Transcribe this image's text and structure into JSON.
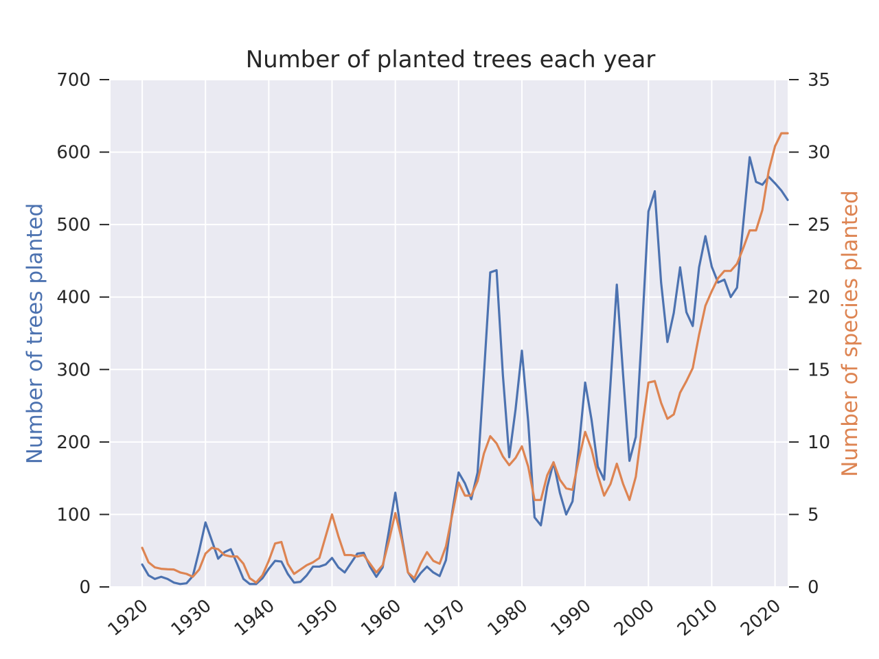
{
  "chart_data": {
    "type": "line",
    "title": "Number of planted trees each year",
    "xlabel": "",
    "xlim": [
      1915,
      2022
    ],
    "x_ticks": [
      "1920",
      "1930",
      "1940",
      "1950",
      "1960",
      "1970",
      "1980",
      "1990",
      "2000",
      "2010",
      "2020"
    ],
    "grid": true,
    "background": "#eaeaf2",
    "y_left": {
      "label": "Number of trees planted",
      "color": "#4c72b0",
      "range": [
        0,
        700
      ],
      "ticks": [
        "0",
        "100",
        "200",
        "300",
        "400",
        "500",
        "600",
        "700"
      ]
    },
    "y_right": {
      "label": "Number of species planted",
      "color": "#dd8452",
      "range": [
        0,
        35
      ],
      "ticks": [
        "0",
        "5",
        "10",
        "15",
        "20",
        "25",
        "30",
        "35"
      ]
    },
    "x": [
      1920,
      1921,
      1922,
      1923,
      1924,
      1925,
      1926,
      1927,
      1928,
      1929,
      1930,
      1931,
      1932,
      1933,
      1934,
      1935,
      1936,
      1937,
      1938,
      1939,
      1940,
      1941,
      1942,
      1943,
      1944,
      1945,
      1946,
      1947,
      1948,
      1949,
      1950,
      1951,
      1952,
      1953,
      1954,
      1955,
      1956,
      1957,
      1958,
      1959,
      1960,
      1961,
      1962,
      1963,
      1964,
      1965,
      1966,
      1967,
      1968,
      1969,
      1970,
      1971,
      1972,
      1973,
      1974,
      1975,
      1976,
      1977,
      1978,
      1979,
      1980,
      1981,
      1982,
      1983,
      1984,
      1985,
      1986,
      1987,
      1988,
      1989,
      1990,
      1991,
      1992,
      1993,
      1994,
      1995,
      1996,
      1997,
      1998,
      1999,
      2000,
      2001,
      2002,
      2003,
      2004,
      2005,
      2006,
      2007,
      2008,
      2009,
      2010,
      2011,
      2012,
      2013,
      2014,
      2015,
      2016,
      2017,
      2018,
      2019,
      2020,
      2021,
      2022
    ],
    "series": [
      {
        "name": "Number of trees planted",
        "axis": "left",
        "color": "#4c72b0",
        "values": [
          31,
          16,
          11,
          14,
          11,
          6,
          4,
          5,
          15,
          50,
          89,
          64,
          39,
          48,
          52,
          32,
          11,
          4,
          4,
          12,
          25,
          36,
          35,
          18,
          6,
          7,
          16,
          28,
          28,
          31,
          40,
          27,
          20,
          33,
          46,
          47,
          28,
          14,
          27,
          78,
          130,
          71,
          20,
          7,
          19,
          28,
          20,
          15,
          37,
          104,
          158,
          143,
          121,
          158,
          293,
          434,
          437,
          292,
          179,
          245,
          326,
          228,
          96,
          85,
          138,
          172,
          130,
          100,
          118,
          192,
          282,
          231,
          166,
          148,
          280,
          417,
          292,
          174,
          207,
          357,
          518,
          546,
          420,
          338,
          378,
          441,
          379,
          360,
          441,
          484,
          442,
          420,
          424,
          400,
          413,
          503,
          593,
          559,
          555,
          566,
          557,
          547,
          534
        ]
      },
      {
        "name": "Number of species planted",
        "axis": "right",
        "color": "#dd8452",
        "values": [
          2.7,
          1.7,
          1.35,
          1.25,
          1.22,
          1.2,
          1.0,
          0.9,
          0.7,
          1.2,
          2.3,
          2.7,
          2.6,
          2.2,
          2.1,
          2.1,
          1.6,
          0.6,
          0.3,
          0.8,
          1.8,
          3.0,
          3.1,
          1.6,
          0.9,
          1.2,
          1.5,
          1.7,
          2.0,
          3.5,
          5.0,
          3.5,
          2.2,
          2.2,
          2.1,
          2.2,
          1.6,
          1.0,
          1.5,
          3.2,
          5.1,
          3.3,
          1.0,
          0.6,
          1.6,
          2.4,
          1.8,
          1.6,
          2.8,
          5.0,
          7.2,
          6.3,
          6.3,
          7.3,
          9.2,
          10.4,
          9.9,
          9.0,
          8.4,
          8.9,
          9.7,
          8.3,
          6.0,
          6.0,
          7.7,
          8.6,
          7.4,
          6.8,
          6.7,
          8.8,
          10.7,
          9.5,
          7.7,
          6.3,
          7.1,
          8.5,
          7.1,
          6.0,
          7.6,
          11.0,
          14.1,
          14.2,
          12.7,
          11.6,
          11.9,
          13.4,
          14.2,
          15.1,
          17.4,
          19.4,
          20.4,
          21.3,
          21.8,
          21.8,
          22.3,
          23.4,
          24.6,
          24.6,
          26.0,
          28.7,
          30.4,
          31.3,
          31.3
        ]
      }
    ]
  }
}
